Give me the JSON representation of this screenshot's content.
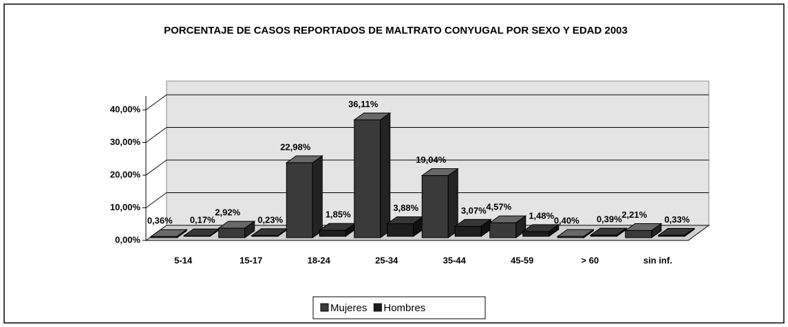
{
  "chart_data": {
    "type": "bar3d",
    "title": "PORCENTAJE DE CASOS REPORTADOS DE MALTRATO CONYUGAL POR SEXO Y EDAD 2003",
    "categories": [
      "5-14",
      "15-17",
      "18-24",
      "25-34",
      "35-44",
      "45-59",
      "> 60",
      "sin inf."
    ],
    "series": [
      {
        "name": "Mujeres",
        "color": "#3a3a3a",
        "values": [
          0.36,
          2.92,
          22.98,
          36.11,
          19.04,
          4.57,
          0.4,
          2.21
        ],
        "value_labels": [
          "0,36%",
          "2,92%",
          "22,98%",
          "36,11%",
          "19,04%",
          "4,57%",
          "0,40%",
          "2,21%"
        ]
      },
      {
        "name": "Hombres",
        "color": "#1e1e1e",
        "values": [
          0.17,
          0.23,
          1.85,
          3.88,
          3.07,
          1.48,
          0.39,
          0.33
        ],
        "value_labels": [
          "0,17%",
          "0,23%",
          "1,85%",
          "3,88%",
          "3,07%",
          "1,48%",
          "0,39%",
          "0,33%"
        ]
      }
    ],
    "ylim": [
      0,
      40
    ],
    "yticks": [
      {
        "value": 0,
        "label": "0,00%"
      },
      {
        "value": 10,
        "label": "10,00%"
      },
      {
        "value": 20,
        "label": "20,00%"
      },
      {
        "value": 30,
        "label": "30,00%"
      },
      {
        "value": 40,
        "label": "40,00%"
      }
    ],
    "grid": true,
    "legend": "bottom"
  }
}
